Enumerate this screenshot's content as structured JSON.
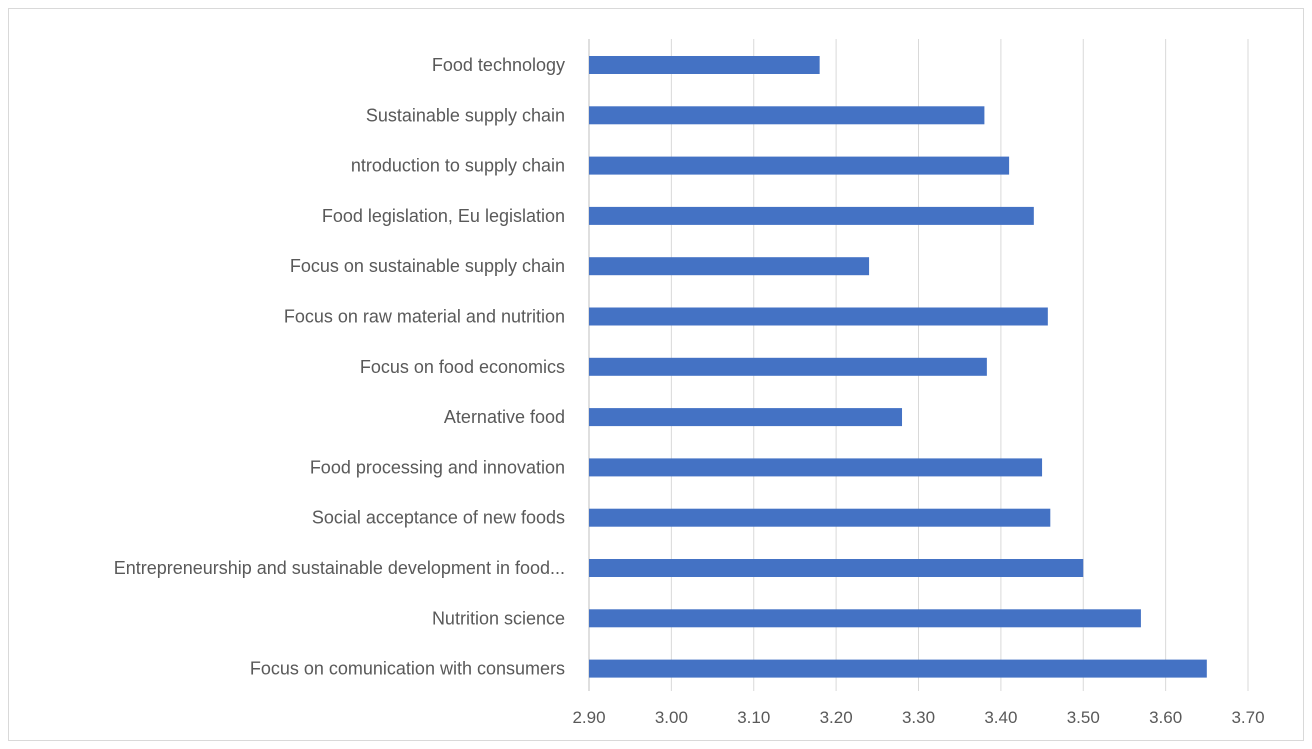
{
  "chart_data": {
    "type": "bar",
    "orientation": "horizontal",
    "title": "",
    "xlabel": "",
    "ylabel": "",
    "categories": [
      "Food technology",
      "Sustainable supply chain",
      "ntroduction to supply chain",
      "Food legislation,  Eu legislation",
      "Focus on sustainable supply chain",
      "Focus on raw material and nutrition",
      "Focus on food economics",
      "Aternative food",
      "Food processing and innovation",
      "Social acceptance of new foods",
      "Entrepreneurship and sustainable  development in food...",
      "Nutrition science",
      "Focus on comunication with consumers"
    ],
    "values": [
      3.18,
      3.38,
      3.41,
      3.44,
      3.24,
      3.457,
      3.383,
      3.28,
      3.45,
      3.46,
      3.5,
      3.57,
      3.65
    ],
    "xlim": [
      2.9,
      3.7
    ],
    "ticks": [
      "2.90",
      "3.00",
      "3.10",
      "3.20",
      "3.30",
      "3.40",
      "3.50",
      "3.60",
      "3.70"
    ],
    "grid": "vertical",
    "legend": "none",
    "bar_color": "#4472c4",
    "grid_color": "#d9d9d9",
    "text_color": "#595959"
  }
}
